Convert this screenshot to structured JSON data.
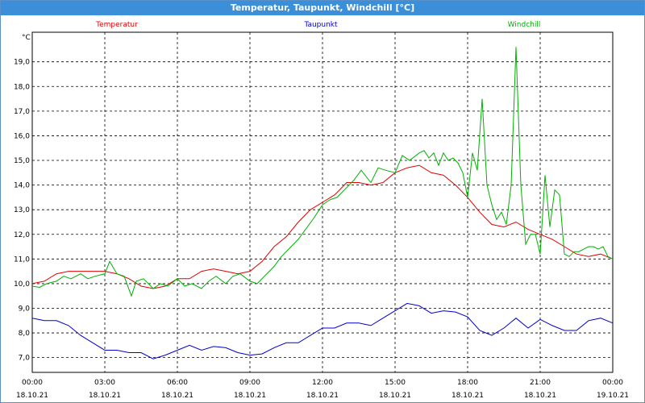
{
  "window": {
    "title": "Temperatur, Taupunkt, Windchill [°C]"
  },
  "chart_data": {
    "type": "line",
    "title": "Temperatur, Taupunkt, Windchill [°C]",
    "ylabel": "°C",
    "ylim": [
      6.4,
      20.2
    ],
    "xlim": [
      0,
      24
    ],
    "grid": true,
    "legend": "top",
    "y_ticks": [
      "7,0",
      "8,0",
      "9,0",
      "10,0",
      "11,0",
      "12,0",
      "13,0",
      "14,0",
      "15,0",
      "16,0",
      "17,0",
      "18,0",
      "19,0"
    ],
    "x_ticks": [
      {
        "time": "00:00",
        "date": "18.10.21"
      },
      {
        "time": "03:00",
        "date": "18.10.21"
      },
      {
        "time": "06:00",
        "date": "18.10.21"
      },
      {
        "time": "09:00",
        "date": "18.10.21"
      },
      {
        "time": "12:00",
        "date": "18.10.21"
      },
      {
        "time": "15:00",
        "date": "18.10.21"
      },
      {
        "time": "18:00",
        "date": "18.10.21"
      },
      {
        "time": "21:00",
        "date": "18.10.21"
      },
      {
        "time": "00:00",
        "date": "19.10.21"
      }
    ],
    "series": [
      {
        "name": "Temperatur",
        "color": "#e00000",
        "x": [
          0,
          0.5,
          1,
          1.5,
          2,
          2.5,
          3,
          3.5,
          4,
          4.5,
          5,
          5.5,
          6,
          6.5,
          7,
          7.5,
          8,
          8.5,
          9,
          9.5,
          10,
          10.5,
          11,
          11.5,
          12,
          12.5,
          13,
          13.5,
          14,
          14.5,
          15,
          15.5,
          16,
          16.5,
          17,
          17.5,
          18,
          18.5,
          19,
          19.5,
          20,
          20.5,
          21,
          21.5,
          22,
          22.5,
          23,
          23.5,
          24
        ],
        "values": [
          10.0,
          10.1,
          10.4,
          10.5,
          10.5,
          10.5,
          10.5,
          10.4,
          10.2,
          9.9,
          9.8,
          9.9,
          10.2,
          10.2,
          10.5,
          10.6,
          10.5,
          10.4,
          10.5,
          10.9,
          11.5,
          11.9,
          12.5,
          13.0,
          13.3,
          13.6,
          14.1,
          14.1,
          14.0,
          14.1,
          14.5,
          14.7,
          14.8,
          14.5,
          14.4,
          14.0,
          13.5,
          12.9,
          12.4,
          12.3,
          12.5,
          12.2,
          12.0,
          11.8,
          11.5,
          11.2,
          11.1,
          11.2,
          11.0
        ]
      },
      {
        "name": "Taupunkt",
        "color": "#0000d0",
        "x": [
          0,
          0.5,
          1,
          1.5,
          2,
          2.5,
          3,
          3.5,
          4,
          4.5,
          5,
          5.5,
          6,
          6.5,
          7,
          7.5,
          8,
          8.5,
          9,
          9.5,
          10,
          10.5,
          11,
          11.5,
          12,
          12.5,
          13,
          13.5,
          14,
          14.5,
          15,
          15.5,
          16,
          16.5,
          17,
          17.5,
          18,
          18.5,
          19,
          19.5,
          20,
          20.5,
          21,
          21.5,
          22,
          22.5,
          23,
          23.5,
          24
        ],
        "values": [
          8.6,
          8.5,
          8.5,
          8.3,
          7.9,
          7.6,
          7.3,
          7.3,
          7.2,
          7.2,
          6.95,
          7.1,
          7.3,
          7.5,
          7.3,
          7.45,
          7.4,
          7.2,
          7.1,
          7.15,
          7.4,
          7.6,
          7.6,
          7.9,
          8.2,
          8.2,
          8.4,
          8.4,
          8.3,
          8.6,
          8.9,
          9.2,
          9.1,
          8.8,
          8.9,
          8.85,
          8.65,
          8.1,
          7.9,
          8.2,
          8.6,
          8.2,
          8.55,
          8.3,
          8.1,
          8.1,
          8.5,
          8.6,
          8.4
        ]
      },
      {
        "name": "Windchill",
        "color": "#00b000",
        "x": [
          0,
          0.3,
          0.6,
          1,
          1.3,
          1.6,
          2,
          2.3,
          2.6,
          3,
          3.2,
          3.5,
          3.8,
          4.1,
          4.3,
          4.6,
          5,
          5.3,
          5.6,
          6,
          6.3,
          6.6,
          7,
          7.3,
          7.6,
          8,
          8.3,
          8.6,
          9,
          9.3,
          9.6,
          10,
          10.3,
          10.6,
          11,
          11.3,
          11.6,
          12,
          12.3,
          12.6,
          13,
          13.3,
          13.6,
          14,
          14.3,
          14.6,
          15,
          15.3,
          15.6,
          16,
          16.2,
          16.4,
          16.6,
          16.8,
          17,
          17.2,
          17.4,
          17.6,
          17.8,
          18,
          18.2,
          18.4,
          18.6,
          18.8,
          19,
          19.2,
          19.4,
          19.6,
          19.8,
          20,
          20.2,
          20.4,
          20.6,
          20.8,
          21,
          21.2,
          21.4,
          21.6,
          21.8,
          22,
          22.2,
          22.4,
          22.6,
          22.8,
          23,
          23.2,
          23.4,
          23.6,
          23.8,
          24
        ],
        "values": [
          9.9,
          9.85,
          10.0,
          10.1,
          10.3,
          10.2,
          10.4,
          10.2,
          10.3,
          10.4,
          10.9,
          10.4,
          10.3,
          9.5,
          10.1,
          10.2,
          9.8,
          10.0,
          9.9,
          10.2,
          9.9,
          10.0,
          9.8,
          10.1,
          10.3,
          10.0,
          10.3,
          10.4,
          10.1,
          10.0,
          10.3,
          10.7,
          11.1,
          11.4,
          11.8,
          12.2,
          12.6,
          13.2,
          13.4,
          13.5,
          13.9,
          14.2,
          14.6,
          14.1,
          14.7,
          14.6,
          14.5,
          15.2,
          15.0,
          15.3,
          15.4,
          15.1,
          15.3,
          14.8,
          15.3,
          15.0,
          15.1,
          14.9,
          14.5,
          13.5,
          15.3,
          14.6,
          17.5,
          14.0,
          13.2,
          12.6,
          12.9,
          12.4,
          14.0,
          19.6,
          14.0,
          11.6,
          12.0,
          12.0,
          11.2,
          14.4,
          12.3,
          13.8,
          13.6,
          11.2,
          11.1,
          11.3,
          11.3,
          11.4,
          11.5,
          11.5,
          11.4,
          11.5,
          11.1,
          11.0
        ]
      }
    ]
  }
}
